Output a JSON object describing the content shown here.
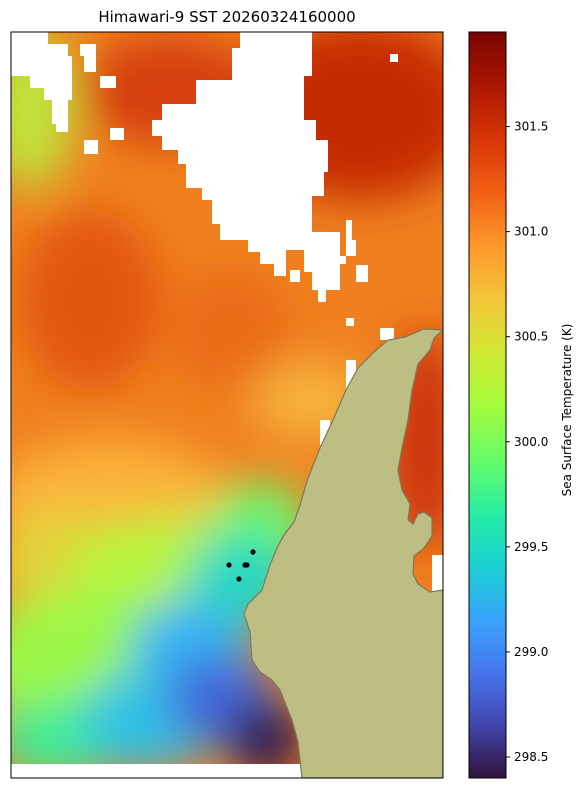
{
  "title": "Himawari-9 SST 20260324160000",
  "colorbar": {
    "label": "Sea Surface Temperature (K)",
    "ticks": [
      {
        "value": 298.5,
        "label": "298.5"
      },
      {
        "value": 299.0,
        "label": "299.0"
      },
      {
        "value": 299.5,
        "label": "299.5"
      },
      {
        "value": 300.0,
        "label": "300.0"
      },
      {
        "value": 300.5,
        "label": "300.5"
      },
      {
        "value": 301.0,
        "label": "301.0"
      },
      {
        "value": 301.5,
        "label": "301.5"
      }
    ],
    "range": [
      298.4,
      301.95
    ],
    "colormap": "turbo"
  },
  "colors": {
    "land": "#bdbd84",
    "coast": "#7a7a5a",
    "no_data": "#ffffff",
    "markers": "#000000"
  },
  "chart_data": {
    "type": "heatmap",
    "title": "Himawari-9 SST 20260324160000",
    "value_label": "Sea Surface Temperature (K)",
    "vmin": 298.4,
    "vmax": 301.95,
    "field_summary": [
      {
        "area": "northeast",
        "value": 301.7
      },
      {
        "area": "north-central",
        "value": 301.3
      },
      {
        "area": "west-central",
        "value": 301.1
      },
      {
        "area": "east along coast",
        "value": 301.5
      },
      {
        "area": "central",
        "value": 300.8
      },
      {
        "area": "southwest",
        "value": 300.2
      },
      {
        "area": "near marker cluster",
        "value": 299.7
      },
      {
        "area": "south",
        "value": 299.1
      },
      {
        "area": "far south near land",
        "value": 298.5
      }
    ],
    "markers": 5,
    "grid": false
  }
}
